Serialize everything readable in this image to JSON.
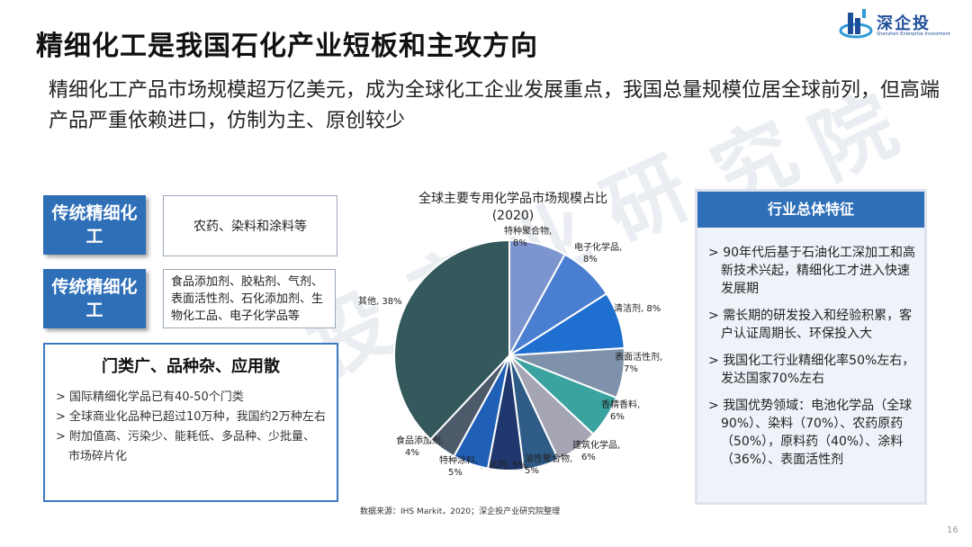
{
  "header": {
    "title": "精细化工是我国石化产业短板和主攻方向",
    "subtitle": "精细化工产品市场规模超万亿美元，成为全球化工企业发展重点，我国总量规模位居全球前列，但高端产品严重依赖进口，仿制为主、原创较少"
  },
  "logo": {
    "name": "深企投",
    "sub": "Shenzhen Enterprise Investment"
  },
  "categories": [
    {
      "label": "传统精细化工",
      "desc": "农药、染料和涂料等"
    },
    {
      "label": "传统精细化工",
      "desc": "食品添加剂、胶粘剂、气剂、表面活性剂、石化添加剂、生物化工品、电子化学品等"
    }
  ],
  "features": {
    "heading": "门类广、品种杂、应用散",
    "items": [
      "国际精细化学品已有40-50个门类",
      "全球商业化品种已超过10万种，我国约2万种左右",
      "附加值高、污染少、能耗低、多品种、少批量、市场碎片化"
    ]
  },
  "industry": {
    "heading": "行业总体特征",
    "items": [
      "90年代后基于石油化工深加工和高新技术兴起，精细化工才进入快速发展期",
      "需长期的研发投入和经验积累，客户认证周期长、环保投入大",
      "我国化工行业精细化率50%左右，发达国家70%左右",
      "我国优势领域：电池化学品（全球90%）、染料（70%）、农药原药（50%），原料药（40%）、涂料（36%）、表面活性剂"
    ]
  },
  "chart_data": {
    "type": "pie",
    "title": "全球主要专用化学品市场规模占比",
    "subtitle": "(2020)",
    "slices": [
      {
        "name": "特种聚合物",
        "value": 8,
        "label": "8%",
        "color": "#7d95cf"
      },
      {
        "name": "电子化学品",
        "value": 8,
        "label": "8%",
        "color": "#4a7ed0"
      },
      {
        "name": "清洁剂",
        "value": 8,
        "label": "8%",
        "color": "#1f6fd1"
      },
      {
        "name": "表面活性剂",
        "value": 7,
        "label": "7%",
        "color": "#7f92ab"
      },
      {
        "name": "香精香料",
        "value": 6,
        "label": "6%",
        "color": "#3aa3a0"
      },
      {
        "name": "建筑化学品",
        "value": 6,
        "label": "6%",
        "color": "#a5a5b4"
      },
      {
        "name": "水溶性聚合物",
        "value": 5,
        "label": "5%",
        "color": "#2e5c86"
      },
      {
        "name": "催化剂",
        "value": 5,
        "label": "5%",
        "color": "#20376d"
      },
      {
        "name": "特种涂料",
        "value": 5,
        "label": "5%",
        "color": "#1f5fb5"
      },
      {
        "name": "食品添加剂",
        "value": 4,
        "label": "4%",
        "color": "#4d5a6a"
      },
      {
        "name": "其他",
        "value": 38,
        "label": "38%",
        "color": "#34595d"
      }
    ]
  },
  "source": "数据来源：IHS Markit，2020；深企投产业研究院整理",
  "page_number": "16",
  "watermark": [
    "深",
    "企",
    "投",
    "产",
    "业",
    "研",
    "究",
    "院"
  ],
  "colors": {
    "accent": "#2e6fb8",
    "title": "#111111"
  }
}
